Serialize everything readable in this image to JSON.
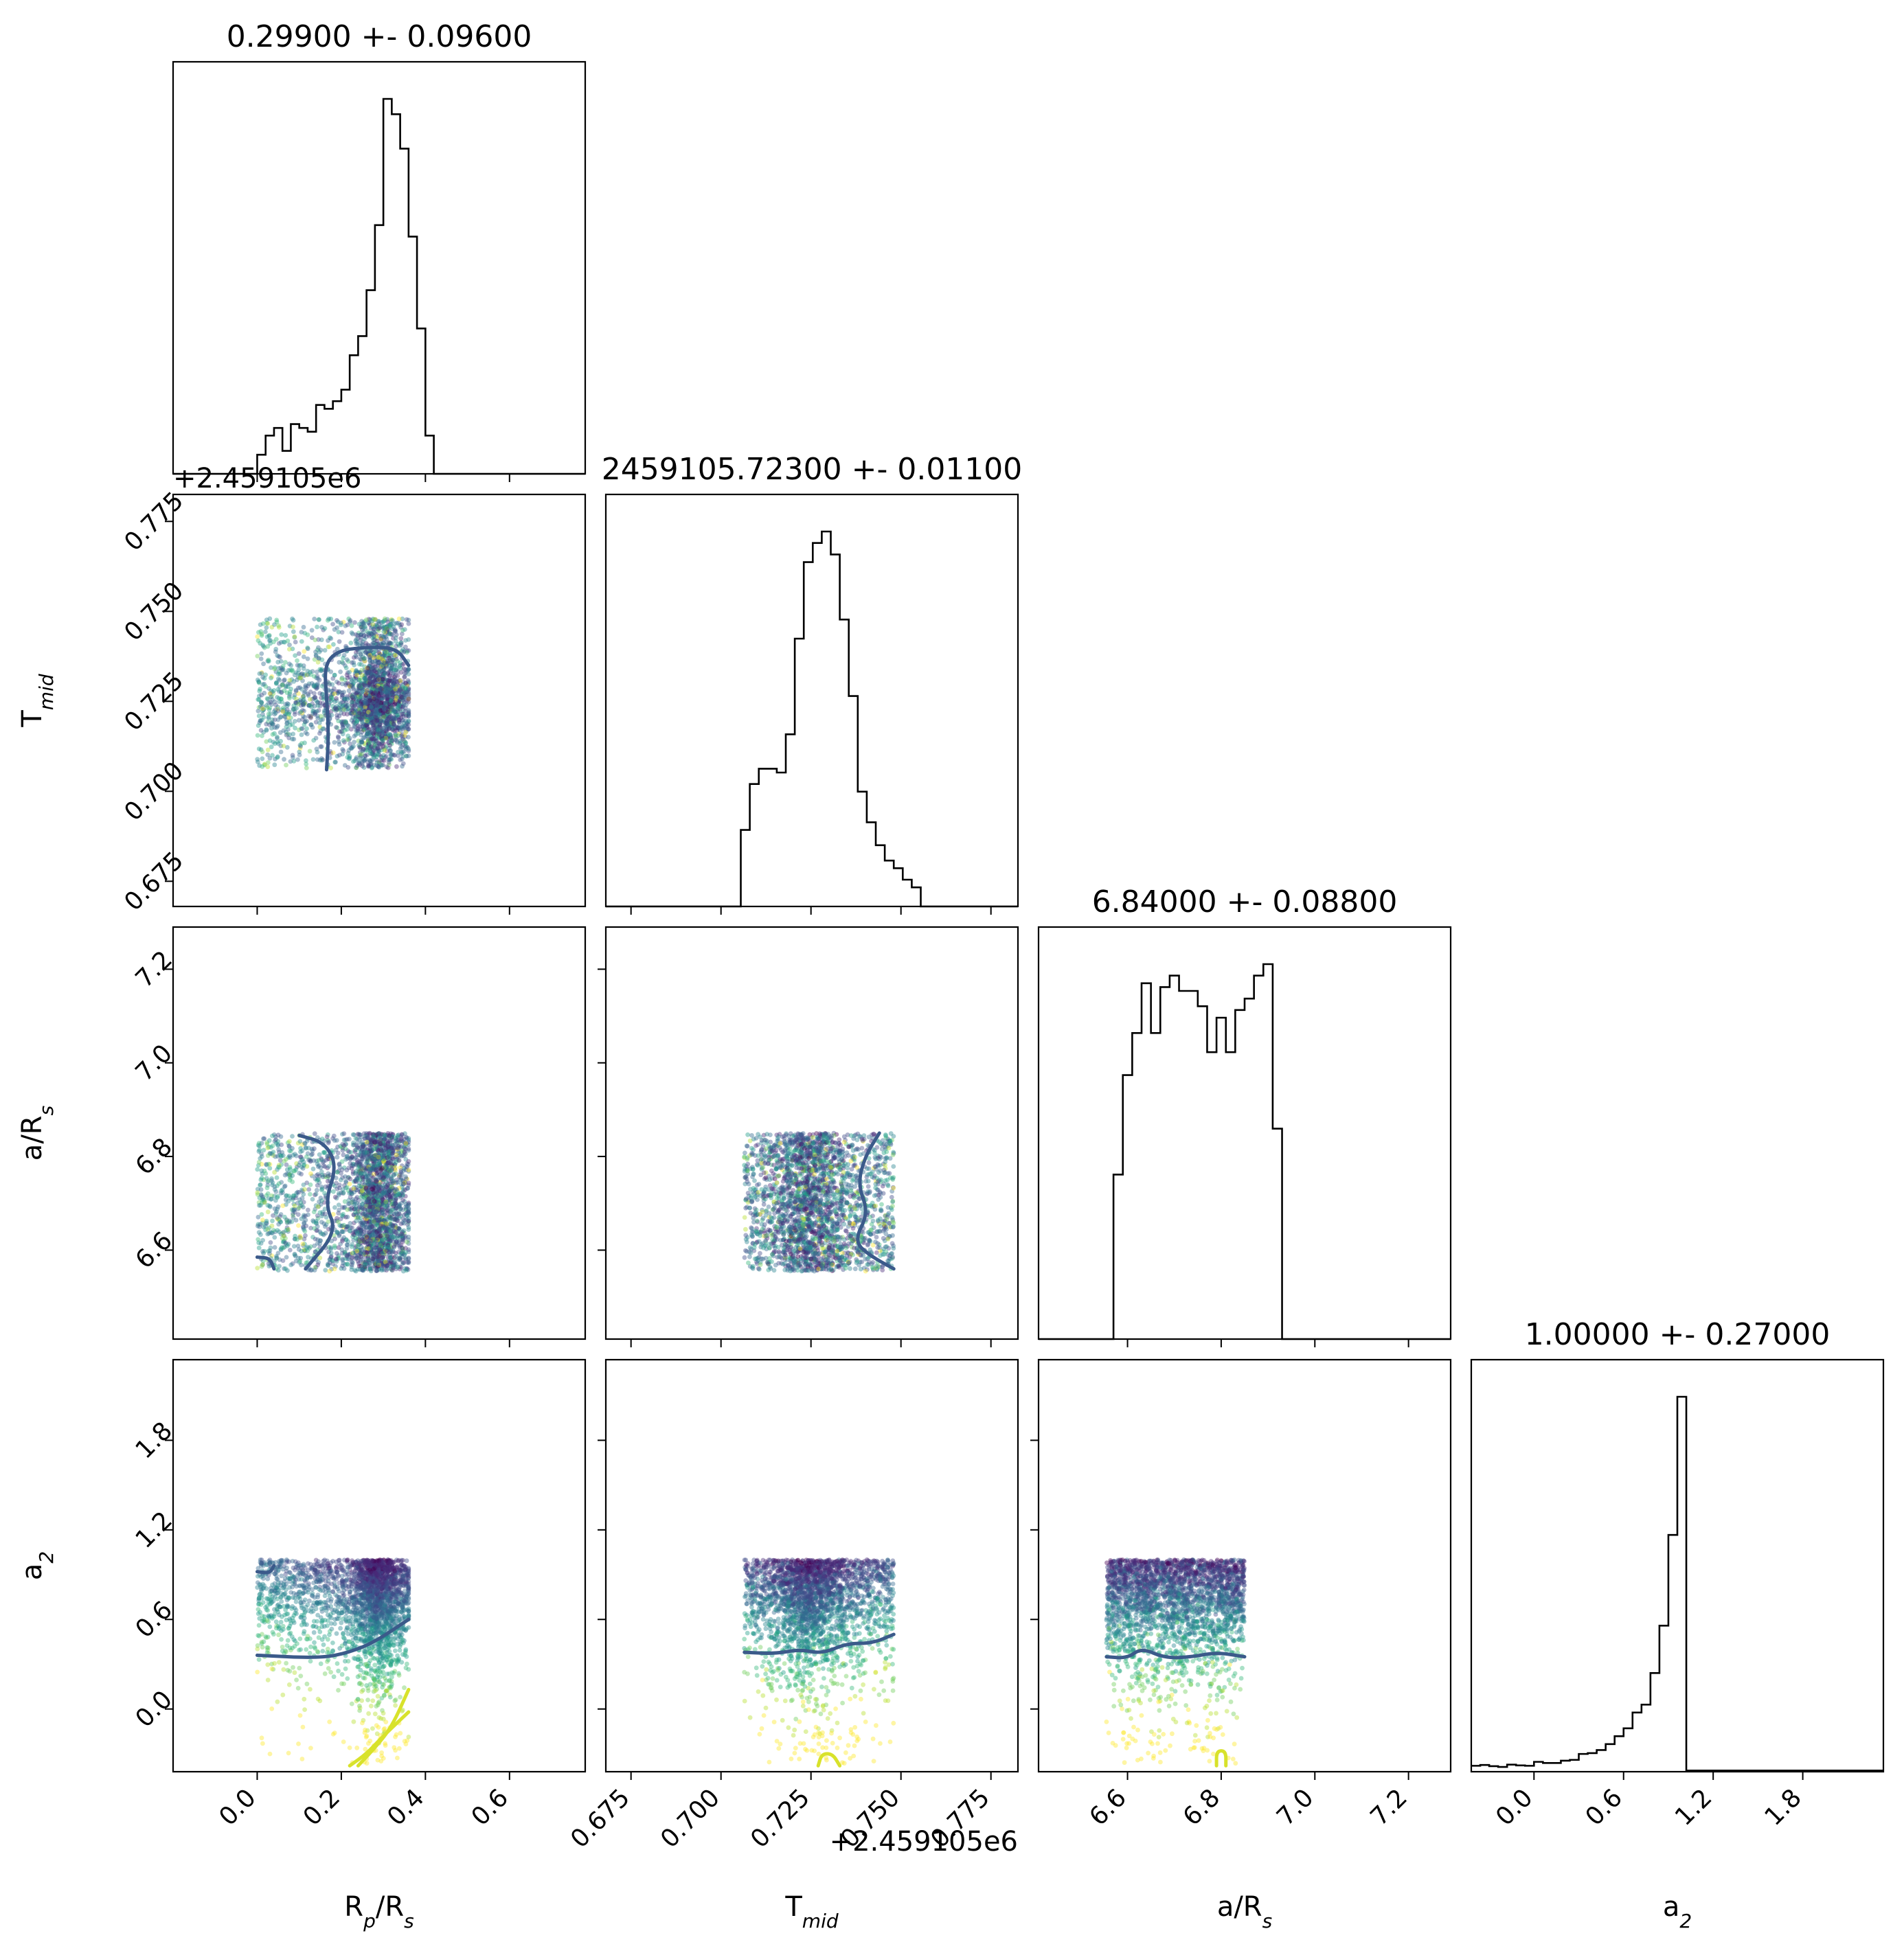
{
  "figure": {
    "params": [
      {
        "key": "rp",
        "label_main": "R",
        "label_sub1": "p",
        "label_mid": "/R",
        "label_sub2": "s",
        "title": "0.29900 +- 0.09600",
        "range": [
          -0.2,
          0.78
        ],
        "ticks": [
          0.0,
          0.2,
          0.4,
          0.6
        ],
        "tick_labels": [
          "0.0",
          "0.2",
          "0.4",
          "0.6"
        ]
      },
      {
        "key": "tmid",
        "label_main": "T",
        "label_sub1": "mid",
        "label_mid": "",
        "label_sub2": "",
        "title": "2459105.72300 +- 0.01100",
        "range": [
          0.668,
          0.7825
        ],
        "ticks": [
          0.675,
          0.7,
          0.725,
          0.75,
          0.775
        ],
        "tick_labels": [
          "0.675",
          "0.700",
          "0.725",
          "0.750",
          "0.775"
        ],
        "offset_label": "+2.459105e6"
      },
      {
        "key": "ars",
        "label_main": "a/R",
        "label_sub1": "s",
        "label_mid": "",
        "label_sub2": "",
        "title": "6.84000 +- 0.08800",
        "range": [
          6.41,
          7.29
        ],
        "ticks": [
          6.6,
          6.8,
          7.0,
          7.2
        ],
        "tick_labels": [
          "6.6",
          "6.8",
          "7.0",
          "7.2"
        ]
      },
      {
        "key": "a2",
        "label_main": "a",
        "label_sub1": "2",
        "label_mid": "",
        "label_sub2": "",
        "title": "1.00000 +- 0.27000",
        "range": [
          -0.42,
          2.34
        ],
        "ticks": [
          0.0,
          0.6,
          1.2,
          1.8
        ],
        "tick_labels": [
          "0.0",
          "0.6",
          "1.2",
          "1.8"
        ]
      }
    ]
  },
  "chart_data": {
    "type": "scatter",
    "title": "",
    "layout": "corner plot (lower triangle scatter with contours, diagonal histograms)",
    "offset_label": "+2.459105e6",
    "histograms": [
      {
        "param": "rp",
        "bin_edges": [
          -0.2,
          -0.18,
          -0.16,
          -0.14,
          -0.12,
          -0.1,
          -0.08,
          -0.06,
          -0.04,
          -0.02,
          0.0,
          0.02,
          0.04,
          0.06,
          0.08,
          0.1,
          0.12,
          0.14,
          0.16,
          0.18,
          0.2,
          0.22,
          0.24,
          0.26,
          0.28,
          0.3,
          0.32,
          0.34,
          0.36,
          0.38,
          0.4,
          0.42,
          0.44,
          0.46,
          0.48,
          0.5,
          0.52,
          0.54,
          0.56,
          0.58,
          0.6,
          0.62,
          0.64,
          0.66,
          0.68,
          0.7,
          0.72,
          0.74,
          0.76,
          0.78
        ],
        "counts": [
          0,
          0,
          0,
          0,
          0,
          0,
          0,
          0,
          0,
          0,
          0.05,
          0.1,
          0.12,
          0.06,
          0.13,
          0.12,
          0.11,
          0.18,
          0.17,
          0.19,
          0.22,
          0.31,
          0.36,
          0.48,
          0.65,
          0.98,
          0.94,
          0.85,
          0.62,
          0.38,
          0.1,
          0,
          0,
          0,
          0,
          0,
          0,
          0,
          0,
          0,
          0,
          0,
          0,
          0,
          0,
          0,
          0,
          0,
          0
        ]
      },
      {
        "param": "tmid",
        "bin_edges": [
          0.668,
          0.6705,
          0.673,
          0.6755,
          0.678,
          0.6805,
          0.683,
          0.6855,
          0.688,
          0.6905,
          0.693,
          0.6955,
          0.698,
          0.7005,
          0.703,
          0.7055,
          0.708,
          0.7105,
          0.713,
          0.7155,
          0.718,
          0.7205,
          0.723,
          0.7255,
          0.728,
          0.7305,
          0.733,
          0.7355,
          0.738,
          0.7405,
          0.743,
          0.7455,
          0.748,
          0.7505,
          0.753,
          0.7555,
          0.758,
          0.7605,
          0.763,
          0.7655,
          0.768,
          0.7705,
          0.773,
          0.7755,
          0.778,
          0.7805,
          0.7825
        ],
        "counts": [
          0,
          0,
          0,
          0,
          0,
          0,
          0,
          0,
          0,
          0,
          0,
          0,
          0,
          0,
          0,
          0.2,
          0.32,
          0.36,
          0.36,
          0.35,
          0.45,
          0.7,
          0.9,
          0.95,
          0.98,
          0.92,
          0.75,
          0.55,
          0.3,
          0.22,
          0.16,
          0.12,
          0.1,
          0.07,
          0.05,
          0,
          0,
          0,
          0,
          0,
          0,
          0,
          0,
          0,
          0,
          0
        ]
      },
      {
        "param": "ars",
        "bin_edges": [
          6.41,
          6.43,
          6.45,
          6.47,
          6.49,
          6.51,
          6.53,
          6.55,
          6.57,
          6.59,
          6.61,
          6.63,
          6.65,
          6.67,
          6.69,
          6.71,
          6.73,
          6.75,
          6.77,
          6.79,
          6.81,
          6.83,
          6.85,
          6.87,
          6.89,
          6.91,
          6.93,
          6.95,
          6.97,
          6.99,
          7.01,
          7.03,
          7.05,
          7.07,
          7.09,
          7.11,
          7.13,
          7.15,
          7.17,
          7.19,
          7.21,
          7.23,
          7.25,
          7.27,
          7.29
        ],
        "counts": [
          0,
          0,
          0,
          0,
          0,
          0,
          0,
          0,
          0.43,
          0.69,
          0.8,
          0.93,
          0.8,
          0.92,
          0.95,
          0.91,
          0.91,
          0.87,
          0.75,
          0.84,
          0.75,
          0.86,
          0.89,
          0.95,
          0.98,
          0.55,
          0,
          0,
          0,
          0,
          0,
          0,
          0,
          0,
          0,
          0,
          0,
          0,
          0,
          0,
          0,
          0,
          0,
          0
        ]
      },
      {
        "param": "a2",
        "bin_edges": [
          -0.42,
          -0.36,
          -0.3,
          -0.24,
          -0.18,
          -0.12,
          -0.06,
          0.0,
          0.06,
          0.12,
          0.18,
          0.24,
          0.3,
          0.36,
          0.42,
          0.48,
          0.54,
          0.6,
          0.66,
          0.72,
          0.78,
          0.84,
          0.9,
          0.96,
          1.02,
          1.08,
          1.14,
          1.2,
          1.26,
          1.32,
          1.38,
          1.44,
          1.5,
          1.56,
          1.62,
          1.68,
          1.74,
          1.8,
          1.86,
          1.92,
          1.98,
          2.04,
          2.1,
          2.16,
          2.22,
          2.28,
          2.34
        ],
        "counts": [
          0.015,
          0.017,
          0.014,
          0.012,
          0.018,
          0.016,
          0.015,
          0.025,
          0.022,
          0.022,
          0.028,
          0.03,
          0.045,
          0.047,
          0.055,
          0.07,
          0.09,
          0.11,
          0.15,
          0.17,
          0.25,
          0.37,
          0.6,
          0.95,
          0.003,
          0.003,
          0.003,
          0.003,
          0.003,
          0.003,
          0.003,
          0.003,
          0.003,
          0.003,
          0.003,
          0.003,
          0.003,
          0.003,
          0.003,
          0.003,
          0.003,
          0.003,
          0.003,
          0.003,
          0.003,
          0.003
        ]
      }
    ],
    "scatter_extents": {
      "rp": [
        0.0,
        0.36
      ],
      "tmid": [
        0.7065,
        0.748
      ],
      "ars": [
        6.555,
        6.85
      ],
      "a2": [
        -0.38,
        1.0
      ]
    },
    "contours": [
      {
        "x": "rp",
        "y": "tmid",
        "color": "#3b5a8a",
        "points": [
          [
            0.165,
            0.706
          ],
          [
            0.17,
            0.716
          ],
          [
            0.165,
            0.726
          ],
          [
            0.16,
            0.735
          ],
          [
            0.19,
            0.739
          ],
          [
            0.25,
            0.74
          ],
          [
            0.33,
            0.74
          ],
          [
            0.36,
            0.735
          ]
        ]
      },
      {
        "x": "rp",
        "y": "ars",
        "color": "#3b5a8a",
        "points": [
          [
            0.1,
            6.845
          ],
          [
            0.16,
            6.83
          ],
          [
            0.19,
            6.78
          ],
          [
            0.16,
            6.7
          ],
          [
            0.19,
            6.64
          ],
          [
            0.115,
            6.56
          ]
        ]
      },
      {
        "x": "rp",
        "y": "ars",
        "color": "#3b5a8a",
        "points": [
          [
            0.0,
            6.585
          ],
          [
            0.03,
            6.583
          ],
          [
            0.04,
            6.56
          ]
        ]
      },
      {
        "x": "tmid",
        "y": "ars",
        "color": "#3b5a8a",
        "points": [
          [
            0.744,
            6.85
          ],
          [
            0.74,
            6.8
          ],
          [
            0.738,
            6.74
          ],
          [
            0.741,
            6.68
          ],
          [
            0.737,
            6.62
          ],
          [
            0.741,
            6.59
          ],
          [
            0.748,
            6.56
          ]
        ]
      },
      {
        "x": "rp",
        "y": "a2",
        "color": "#3b5a8a",
        "points": [
          [
            0.0,
            0.36
          ],
          [
            0.15,
            0.34
          ],
          [
            0.22,
            0.38
          ],
          [
            0.28,
            0.45
          ],
          [
            0.36,
            0.6
          ]
        ]
      },
      {
        "x": "rp",
        "y": "a2",
        "color": "#3b5a8a",
        "points": [
          [
            0.0,
            0.92
          ],
          [
            0.03,
            0.91
          ],
          [
            0.04,
            0.96
          ]
        ]
      },
      {
        "x": "rp",
        "y": "a2",
        "color": "#d8e22b",
        "points": [
          [
            0.22,
            -0.38
          ],
          [
            0.26,
            -0.3
          ],
          [
            0.3,
            -0.18
          ],
          [
            0.36,
            -0.02
          ]
        ]
      },
      {
        "x": "rp",
        "y": "a2",
        "color": "#d8e22b",
        "points": [
          [
            0.24,
            -0.38
          ],
          [
            0.28,
            -0.26
          ],
          [
            0.32,
            -0.12
          ],
          [
            0.36,
            0.13
          ]
        ]
      },
      {
        "x": "tmid",
        "y": "a2",
        "color": "#3b5a8a",
        "points": [
          [
            0.7065,
            0.38
          ],
          [
            0.715,
            0.37
          ],
          [
            0.722,
            0.4
          ],
          [
            0.728,
            0.37
          ],
          [
            0.735,
            0.44
          ],
          [
            0.742,
            0.44
          ],
          [
            0.748,
            0.5
          ]
        ]
      },
      {
        "x": "ars",
        "y": "a2",
        "color": "#3b5a8a",
        "points": [
          [
            6.555,
            0.35
          ],
          [
            6.6,
            0.34
          ],
          [
            6.63,
            0.41
          ],
          [
            6.68,
            0.34
          ],
          [
            6.74,
            0.35
          ],
          [
            6.79,
            0.38
          ],
          [
            6.85,
            0.35
          ]
        ]
      },
      {
        "x": "tmid",
        "y": "a2",
        "color": "#d8e22b",
        "points": [
          [
            0.727,
            -0.38
          ],
          [
            0.728,
            -0.3
          ],
          [
            0.731,
            -0.3
          ],
          [
            0.733,
            -0.38
          ]
        ]
      },
      {
        "x": "ars",
        "y": "a2",
        "color": "#d8e22b",
        "points": [
          [
            6.79,
            -0.38
          ],
          [
            6.79,
            -0.28
          ],
          [
            6.81,
            -0.28
          ],
          [
            6.81,
            -0.38
          ]
        ]
      }
    ],
    "point_color_scale": "viridis (dark purple = high density, yellow = low likelihood)"
  }
}
